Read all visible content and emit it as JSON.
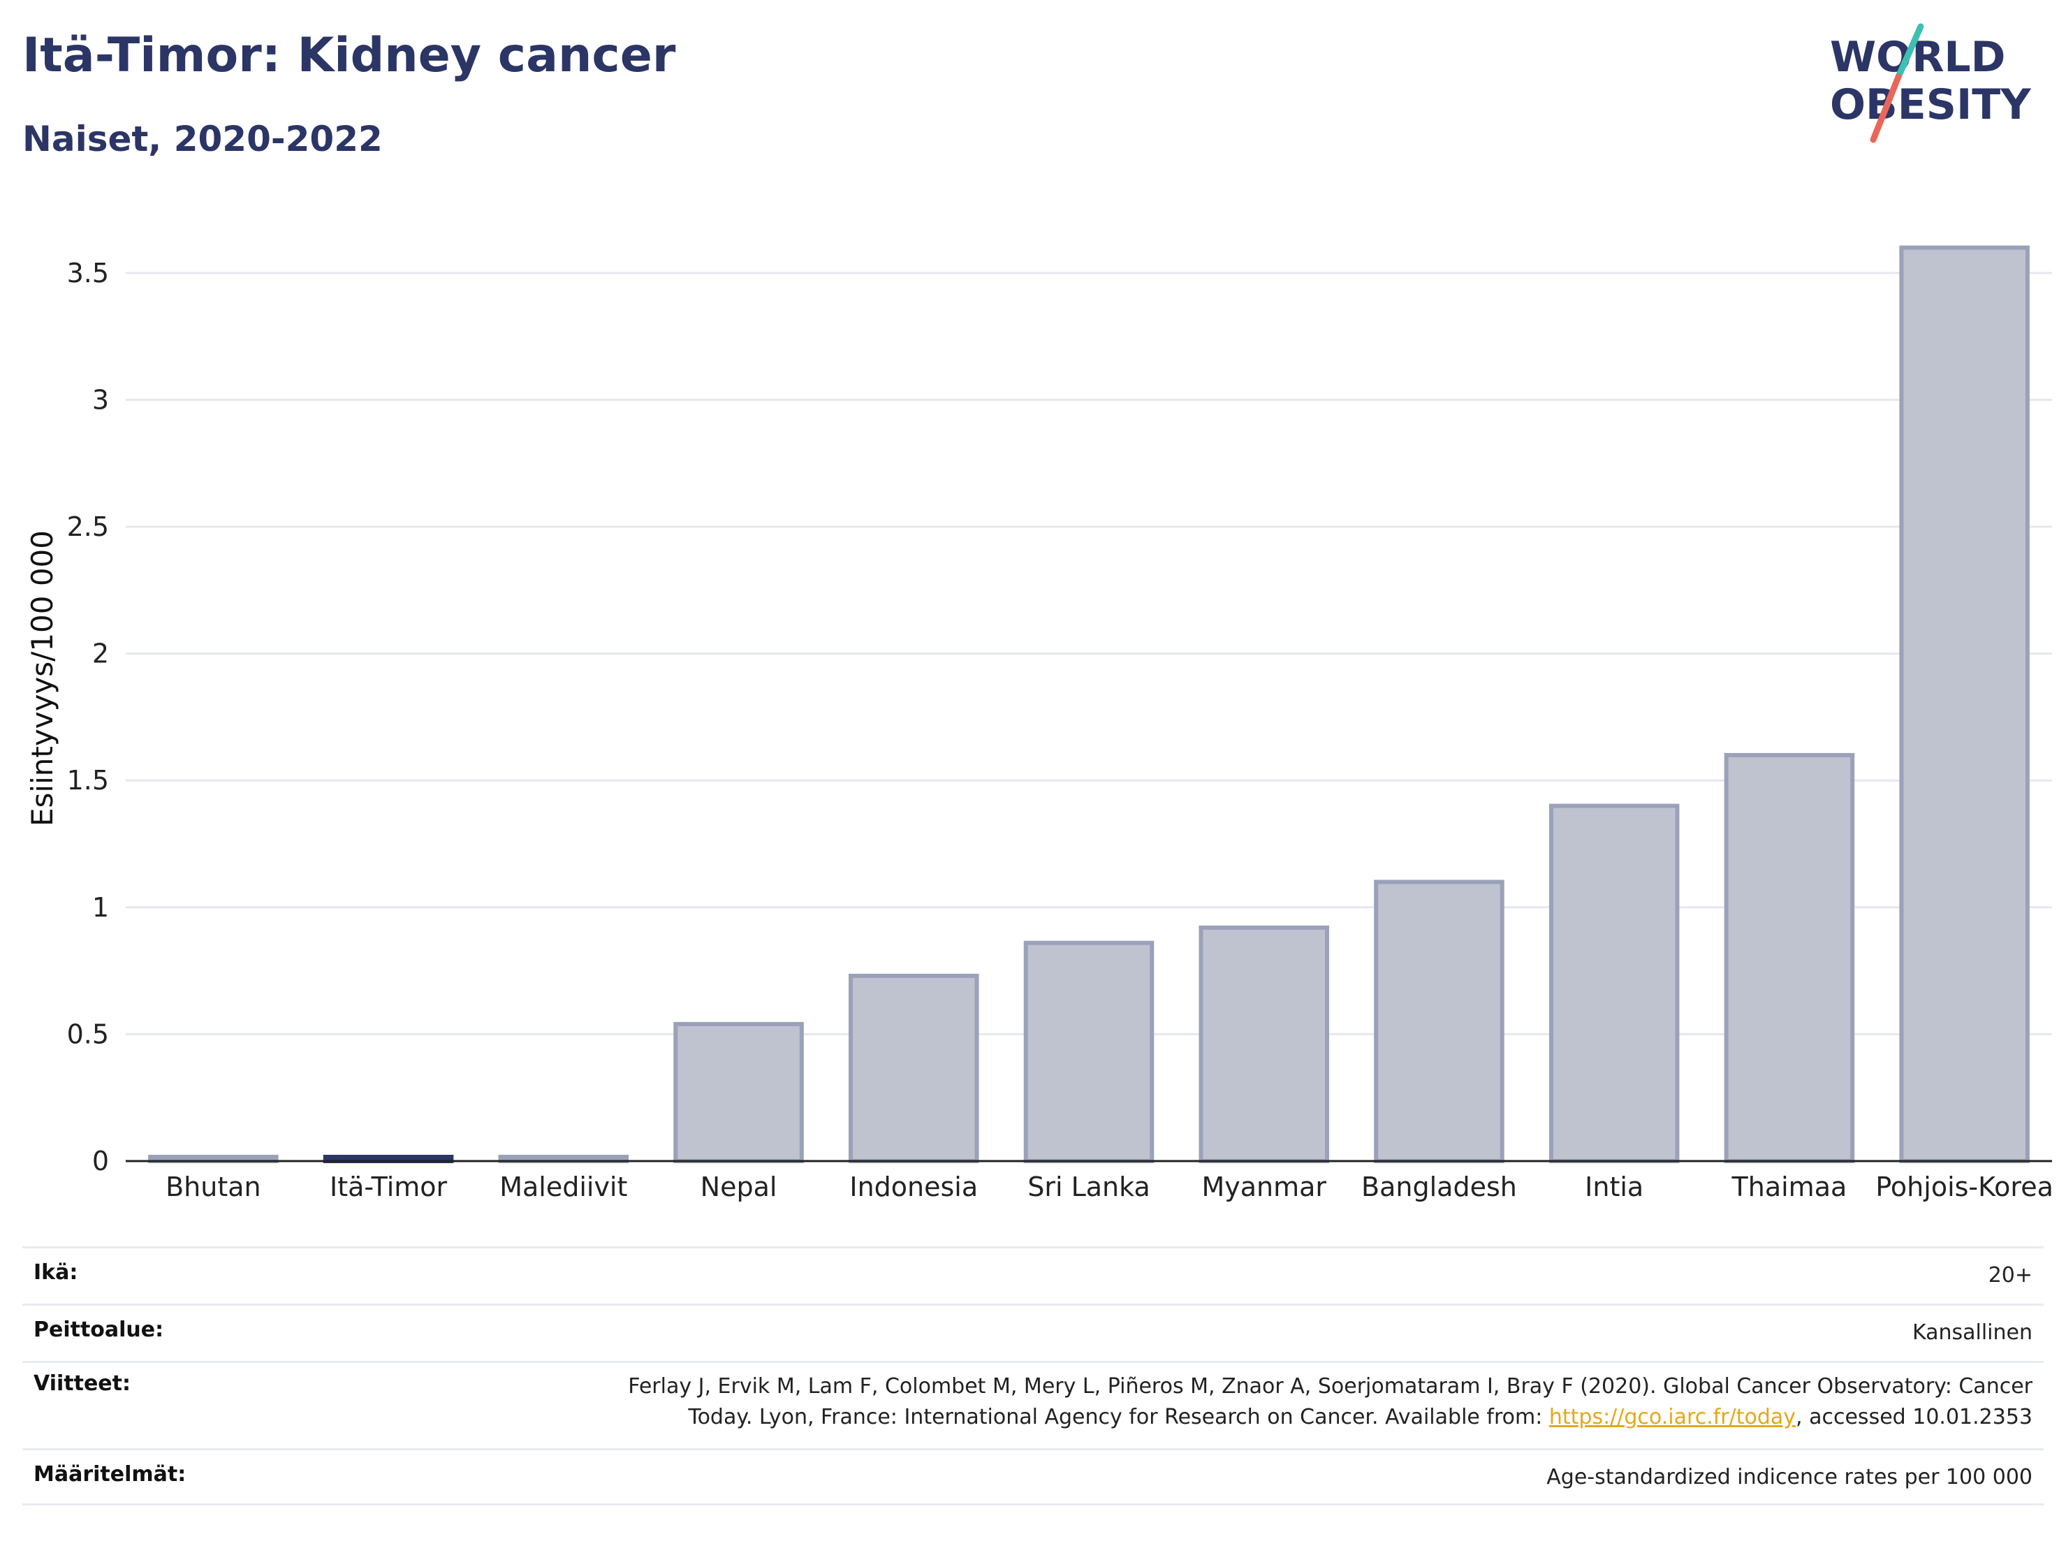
{
  "header": {
    "title": "Itä-Timor: Kidney cancer",
    "subtitle": "Naiset, 2020-2022"
  },
  "logo": {
    "line1": "WORLD",
    "line2": "OBESITY",
    "text_color": "#2b3566",
    "stroke_colors": [
      "#3ebfb3",
      "#e8675a"
    ]
  },
  "chart_data": {
    "type": "bar",
    "categories": [
      "Bhutan",
      "Itä-Timor",
      "Malediivit",
      "Nepal",
      "Indonesia",
      "Sri Lanka",
      "Myanmar",
      "Bangladesh",
      "Intia",
      "Thaimaa",
      "Pohjois-Korea"
    ],
    "values": [
      0.01,
      0.01,
      0.01,
      0.54,
      0.73,
      0.86,
      0.92,
      1.1,
      1.4,
      1.6,
      3.6
    ],
    "highlight": "Itä-Timor",
    "ylabel": "Esiintyvyys/100 000",
    "xlabel": "",
    "ylim": [
      0,
      3.75
    ],
    "yticks": [
      0,
      0.5,
      1,
      1.5,
      2,
      2.5,
      3,
      3.5
    ],
    "ytick_labels": [
      "0",
      "0.5",
      "1",
      "1.5",
      "2",
      "2.5",
      "3",
      "3.5"
    ],
    "grid": true,
    "bar_fill": "#bfc3d0",
    "bar_stroke": "#9aa1b9",
    "highlight_color": "#2b3566"
  },
  "meta": {
    "age_label": "Ikä:",
    "age_value": "20+",
    "coverage_label": "Peittoalue:",
    "coverage_value": "Kansallinen",
    "refs_label": "Viitteet:",
    "refs_text_1": "Ferlay J, Ervik M, Lam F, Colombet M, Mery L, Piñeros M, Znaor A, Soerjomataram I, Bray F (2020). Global Cancer Observatory: Cancer",
    "refs_text_2": "Today. Lyon, France: International Agency for Research on Cancer. Available from: ",
    "refs_link": "https://gco.iarc.fr/today",
    "refs_text_3": ", accessed 10.01.2353",
    "defs_label": "Määritelmät:",
    "defs_value": "Age-standardized indicence rates per 100 000"
  }
}
